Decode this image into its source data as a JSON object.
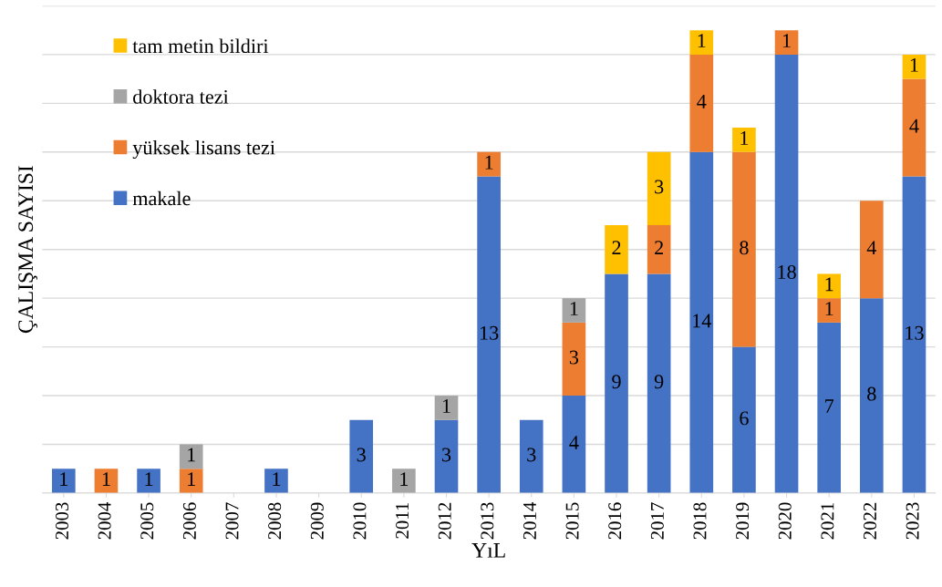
{
  "chart_data": {
    "type": "bar",
    "stacked": true,
    "data_labels": true,
    "xlabel": "YıL",
    "ylabel": "ÇALIŞMA SAYISI",
    "categories": [
      "2003",
      "2004",
      "2005",
      "2006",
      "2007",
      "2008",
      "2009",
      "2010",
      "2011",
      "2012",
      "2013",
      "2014",
      "2015",
      "2016",
      "2017",
      "2018",
      "2019",
      "2020",
      "2021",
      "2022",
      "2023"
    ],
    "series": [
      {
        "name": "makale",
        "color": "#4472c4",
        "values": [
          1,
          null,
          1,
          null,
          null,
          1,
          null,
          3,
          null,
          3,
          13,
          3,
          4,
          9,
          9,
          14,
          6,
          18,
          7,
          8,
          13
        ]
      },
      {
        "name": "yüksek lisans tezi",
        "color": "#ed7d31",
        "values": [
          null,
          1,
          null,
          1,
          null,
          null,
          null,
          null,
          null,
          null,
          1,
          null,
          3,
          null,
          2,
          4,
          8,
          1,
          1,
          4,
          4
        ]
      },
      {
        "name": "doktora tezi",
        "color": "#a5a5a5",
        "values": [
          null,
          null,
          null,
          1,
          null,
          null,
          null,
          null,
          1,
          1,
          null,
          null,
          1,
          null,
          null,
          null,
          null,
          null,
          null,
          null,
          null
        ]
      },
      {
        "name": "tam metin bildiri",
        "color": "#ffc000",
        "values": [
          null,
          null,
          null,
          null,
          null,
          null,
          null,
          null,
          null,
          null,
          null,
          null,
          null,
          2,
          3,
          1,
          1,
          null,
          1,
          null,
          1
        ]
      }
    ],
    "ylim": [
      0,
      20
    ],
    "yticks": [
      {
        "value": 0,
        "label": null
      },
      {
        "value": 2,
        "label": null
      },
      {
        "value": 4,
        "label": null
      },
      {
        "value": 6,
        "label": null
      },
      {
        "value": 8,
        "label": null
      },
      {
        "value": 10,
        "label": null
      },
      {
        "value": 12,
        "label": null
      },
      {
        "value": 14,
        "label": null
      },
      {
        "value": 16,
        "label": null
      },
      {
        "value": 18,
        "label": null
      },
      {
        "value": 20,
        "label": null
      }
    ],
    "tick_labels": "x",
    "grid": "y",
    "legend": "top left"
  }
}
